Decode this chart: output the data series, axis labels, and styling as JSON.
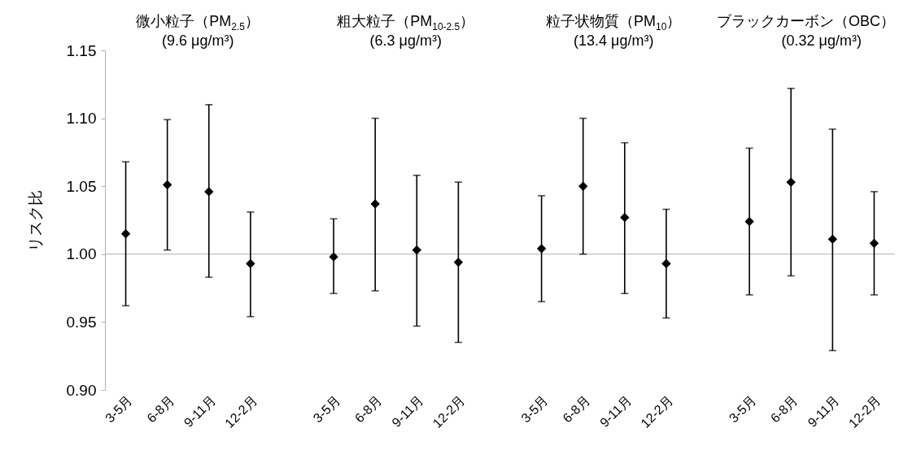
{
  "chart_data": {
    "type": "scatter",
    "ylabel": "リスク比",
    "annotations": [
      "微小粒子（PM$_{2.5}$）",
      "(9.6 μg/m³)",
      "粗大粒子（PM$_{10-2.5}$）",
      "(6.3 μg/m³)",
      "粒子状物質（PM$_{10}$）",
      "(13.4 μg/m³)",
      "ブラックカーボン（OBC）",
      "(0.32 μg/m³)"
    ],
    "categories": [
      "3-5月",
      "6-8月",
      "9-11月",
      "12-2月",
      null,
      "3-5月",
      "6-8月",
      "9-11月",
      "12-2月",
      null,
      "3-5月",
      "6-8月",
      "9-11月",
      "12-2月",
      null,
      "3-5月",
      "6-8月",
      "9-11月",
      "12-2月"
    ],
    "series": [
      {
        "color": "#000000",
        "values": [
          1.015,
          1.051,
          1.046,
          0.993,
          null,
          0.998,
          1.037,
          1.003,
          0.994,
          null,
          1.004,
          1.05,
          1.027,
          0.993,
          null,
          1.024,
          1.053,
          1.011,
          1.008
        ],
        "errors": [
          [
            0.962,
            1.068
          ],
          [
            1.003,
            1.099
          ],
          [
            0.983,
            1.11
          ],
          [
            0.954,
            1.031
          ],
          null,
          [
            0.971,
            1.026
          ],
          [
            0.973,
            1.1
          ],
          [
            0.947,
            1.058
          ],
          [
            0.935,
            1.053
          ],
          null,
          [
            0.965,
            1.043
          ],
          [
            1.0,
            1.1
          ],
          [
            0.971,
            1.082
          ],
          [
            0.953,
            1.033
          ],
          null,
          [
            0.97,
            1.078
          ],
          [
            0.984,
            1.122
          ],
          [
            0.929,
            1.092
          ],
          [
            0.97,
            1.046
          ]
        ]
      }
    ],
    "ylim": [
      0.9,
      1.15
    ],
    "yticks": [
      {
        "value": 0.9,
        "label": "0.90"
      },
      0.95,
      {
        "value": 1,
        "label": "1.00"
      },
      1.05,
      {
        "value": 1.1,
        "label": "1.10"
      },
      1.15
    ],
    "ref_lines": [
      {
        "axis": "y",
        "value": 1,
        "color": "#b3b3b3"
      }
    ],
    "marker": "diamond"
  }
}
